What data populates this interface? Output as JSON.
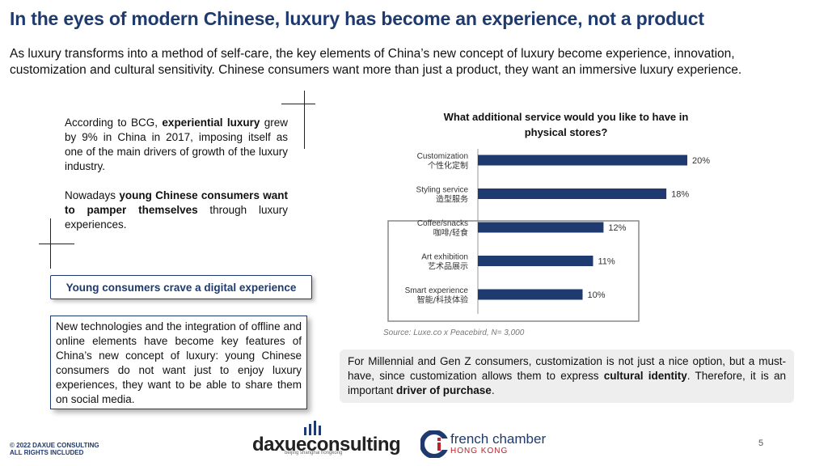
{
  "header": {
    "title": "In the eyes of modern Chinese, luxury has become an experience, not a product",
    "intro_line1": "As luxury transforms into a method of self-care, the key elements of China’s new concept of luxury become experience, innovation,",
    "intro_line2": "customization and cultural sensitivity. Chinese consumers want more than just a product, they want an immersive luxury experience."
  },
  "left": {
    "p1_a": "According to BCG, ",
    "p1_b": "experiential luxury",
    "p1_c": " grew by 9% in China in 2017, imposing itself as one of the main drivers of growth of the luxury industry.",
    "p2_a": "Nowadays ",
    "p2_b": "young Chinese consumers want to pamper themselves",
    "p2_c": " through luxury experiences.",
    "digital_label": "Young consumers crave a digital experience",
    "tech_text": "New technologies and the integration of offline and online elements have become key features of China’s new concept of luxury: young Chinese consumers do not want just to enjoy luxury experiences, they want to be able to share them on social media."
  },
  "chart_data": {
    "type": "bar",
    "orientation": "horizontal",
    "title": "What additional service would you like to have in physical stores?",
    "categories": [
      {
        "en": "Customization",
        "zh": "个性化定制"
      },
      {
        "en": "Styling service",
        "zh": "造型服务"
      },
      {
        "en": "Coffee/snacks",
        "zh": "咖啡/轻食"
      },
      {
        "en": "Art exhibition",
        "zh": "艺术品展示"
      },
      {
        "en": "Smart experience",
        "zh": "智能/科技体验"
      }
    ],
    "values": [
      20,
      18,
      12,
      11,
      10
    ],
    "value_labels": [
      "20%",
      "18%",
      "12%",
      "11%",
      "10%"
    ],
    "highlighted_categories": [
      "Coffee/snacks",
      "Art exhibition",
      "Smart experience"
    ],
    "bar_color": "#1f3a6e",
    "xlim": [
      0,
      20
    ]
  },
  "source": "Source: Luxe.co x Peacebird, N= 3,000",
  "callout": {
    "a": "For Millennial and Gen Z consumers, customization is not just a nice option, but a must-have, since customization allows them to express ",
    "b": "cultural identity",
    "c": ". Therefore, it is an important ",
    "d": "driver of purchase",
    "e": "."
  },
  "footer": {
    "copyright_1": "© 2022 DAXUE CONSULTING",
    "copyright_2": "ALL RIGHTS INCLUDED",
    "daxue_logo": "daxueconsulting",
    "daxue_tagline": "beijing shanghai hongkong",
    "fc_logo_1": "french chamber",
    "fc_logo_2": "HONG KONG",
    "page_number": "5"
  },
  "colors": {
    "accent": "#1f3a6e",
    "red": "#c0202a"
  }
}
